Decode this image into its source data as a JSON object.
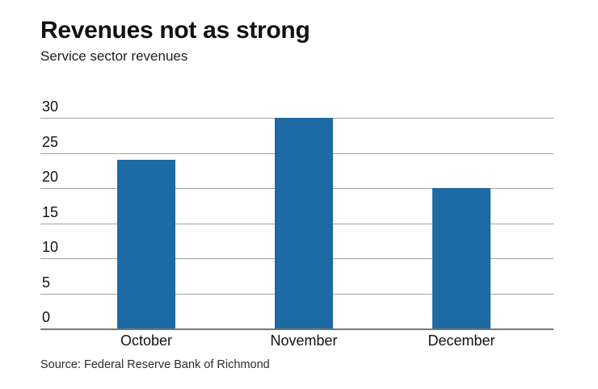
{
  "chart_data": {
    "type": "bar",
    "title": "Revenues not as strong",
    "subtitle": "Service sector revenues",
    "source": "Source: Federal Reserve Bank of Richmond",
    "categories": [
      "October",
      "November",
      "December"
    ],
    "values": [
      24,
      30,
      20
    ],
    "xlabel": "",
    "ylabel": "",
    "ylim": [
      0,
      30
    ],
    "yticks": [
      0,
      5,
      10,
      15,
      20,
      25,
      30
    ],
    "grid": true,
    "legend_position": "none",
    "bar_color": "#1e6aa5",
    "gridline_color": "#a2a2a2",
    "baseline_color": "#767676",
    "text_color": "#121212"
  }
}
